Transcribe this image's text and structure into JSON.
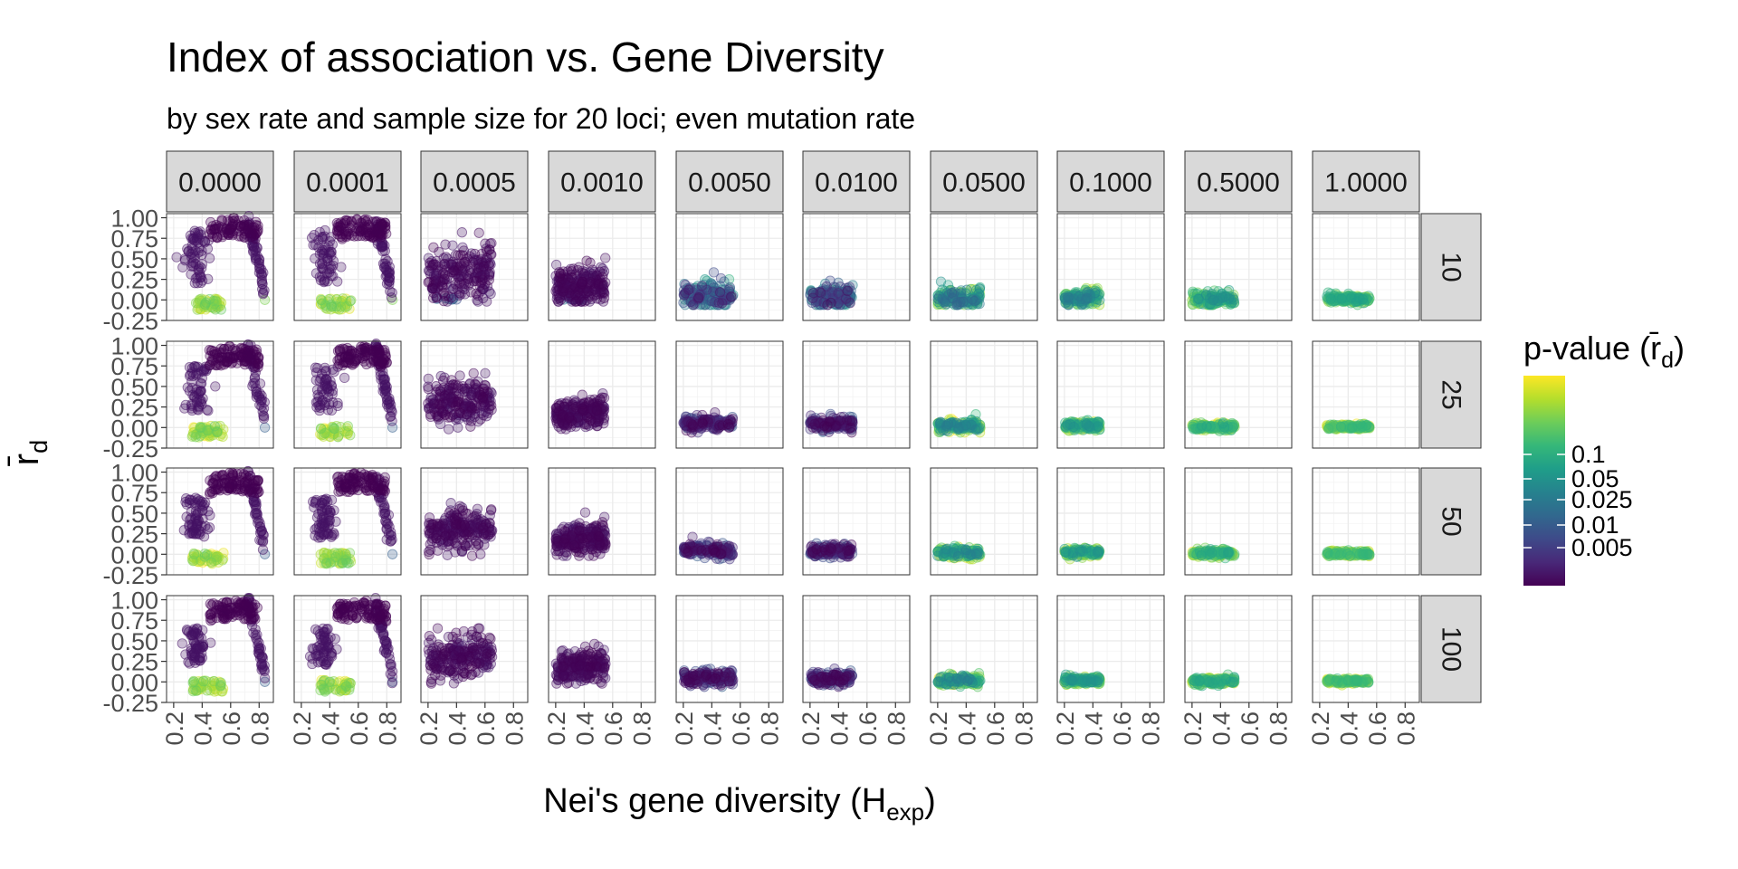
{
  "chart_data": {
    "type": "scatter",
    "title": "Index of association vs. Gene Diversity",
    "subtitle": "by sex rate and sample size for 20 loci; even mutation rate",
    "xlabel": {
      "main": "Nei's gene diversity (H",
      "sub": "exp",
      "end": ")"
    },
    "ylabel": {
      "main": "r̄",
      "sub": "d"
    },
    "xlim": [
      0.15,
      0.9
    ],
    "ylim": [
      -0.25,
      1.05
    ],
    "x_ticks": [
      "0.2",
      "0.4",
      "0.6",
      "0.8"
    ],
    "y_ticks": [
      "-0.25",
      "0.00",
      "0.25",
      "0.50",
      "0.75",
      "1.00"
    ],
    "facet_cols": [
      "0.0000",
      "0.0001",
      "0.0005",
      "0.0010",
      "0.0050",
      "0.0100",
      "0.0500",
      "0.1000",
      "0.5000",
      "1.0000"
    ],
    "facet_rows": [
      "10",
      "25",
      "50",
      "100"
    ],
    "legend": {
      "title": {
        "main": "p-value (r̄",
        "sub": "d",
        "end": ")"
      },
      "breaks": [
        "0.1",
        "0.05",
        "0.025",
        "0.01",
        "0.005"
      ],
      "palette": [
        "#FDE725",
        "#B4DE2C",
        "#6DCD59",
        "#35B779",
        "#1F9E89",
        "#26828E",
        "#31688E",
        "#3E4A89",
        "#482878",
        "#440154"
      ],
      "position": "right"
    },
    "point_color_low_p": "#440154",
    "point_color_high_p": "#FDE725",
    "panels_summary": [
      {
        "col": "0.0000",
        "pattern": "arch",
        "x_range": [
          0.3,
          0.85
        ],
        "y_range": [
          -0.12,
          1.0
        ]
      },
      {
        "col": "0.0001",
        "pattern": "arch",
        "x_range": [
          0.3,
          0.85
        ],
        "y_range": [
          -0.12,
          1.0
        ]
      },
      {
        "col": "0.0005",
        "pattern": "cloud",
        "x_range": [
          0.2,
          0.65
        ],
        "y_center": 0.3
      },
      {
        "col": "0.0010",
        "pattern": "cloud",
        "x_range": [
          0.2,
          0.55
        ],
        "y_center": 0.18
      },
      {
        "col": "0.0050",
        "pattern": "band",
        "x_range": [
          0.2,
          0.55
        ],
        "y_center": 0.05
      },
      {
        "col": "0.0100",
        "pattern": "band",
        "x_range": [
          0.2,
          0.5
        ],
        "y_center": 0.04
      },
      {
        "col": "0.0500",
        "pattern": "band",
        "x_range": [
          0.2,
          0.5
        ],
        "y_center": 0.02
      },
      {
        "col": "0.1000",
        "pattern": "band",
        "x_range": [
          0.2,
          0.45
        ],
        "y_center": 0.02
      },
      {
        "col": "0.5000",
        "pattern": "band",
        "x_range": [
          0.2,
          0.5
        ],
        "y_center": 0.01
      },
      {
        "col": "1.0000",
        "pattern": "band",
        "x_range": [
          0.25,
          0.55
        ],
        "y_center": 0.01
      }
    ]
  }
}
